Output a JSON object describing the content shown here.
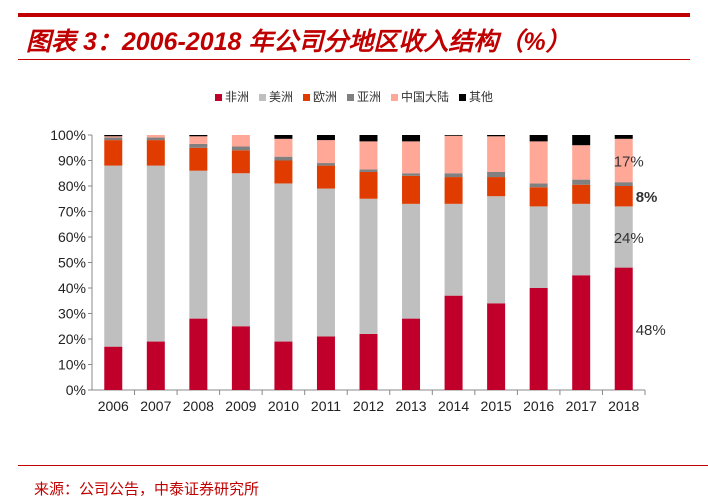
{
  "header": {
    "title": "图表 3：2006-2018 年公司分地区收入结构（%）"
  },
  "footer": {
    "source": "来源：公司公告，中泰证券研究所"
  },
  "chart_data": {
    "type": "bar",
    "stacked": true,
    "title": "",
    "xlabel": "",
    "ylabel": "",
    "ylim": [
      0,
      100
    ],
    "y_ticks": [
      "0%",
      "10%",
      "20%",
      "30%",
      "40%",
      "50%",
      "60%",
      "70%",
      "80%",
      "90%",
      "100%"
    ],
    "legend_position": "top",
    "grid": false,
    "categories": [
      "2006",
      "2007",
      "2008",
      "2009",
      "2010",
      "2011",
      "2012",
      "2013",
      "2014",
      "2015",
      "2016",
      "2017",
      "2018"
    ],
    "series": [
      {
        "name": "非洲",
        "color": "#C0002A",
        "values": [
          17,
          19,
          28,
          25,
          19,
          21,
          22,
          28,
          37,
          34,
          40,
          45,
          48
        ]
      },
      {
        "name": "美洲",
        "color": "#BFBFBF",
        "values": [
          71,
          69,
          58,
          60,
          62,
          58,
          53,
          45,
          36,
          42,
          32,
          28,
          24
        ]
      },
      {
        "name": "欧洲",
        "color": "#E03C00",
        "values": [
          10,
          10,
          9,
          9,
          9,
          9,
          10.5,
          11,
          10.5,
          7.5,
          7.5,
          7.5,
          8
        ]
      },
      {
        "name": "亚洲",
        "color": "#808080",
        "values": [
          1,
          1,
          1.5,
          1.5,
          1.5,
          1,
          1,
          1,
          1.5,
          2,
          1.5,
          2,
          1.5
        ]
      },
      {
        "name": "中国大陆",
        "color": "#FFA898",
        "values": [
          0.5,
          1,
          3,
          4.5,
          7,
          9,
          11,
          12.5,
          14.7,
          14,
          16.5,
          13.5,
          17
        ]
      },
      {
        "name": "其他",
        "color": "#000000",
        "values": [
          0.5,
          0,
          0.5,
          0,
          1.5,
          2,
          2.5,
          2.5,
          0.3,
          0.5,
          2.5,
          4,
          1.5
        ]
      }
    ],
    "annotations": [
      {
        "category": "2018",
        "series": "中国大陆",
        "text": "17%"
      },
      {
        "category": "2018",
        "series": "欧洲",
        "text": "8%"
      },
      {
        "category": "2018",
        "series": "美洲",
        "text": "24%"
      },
      {
        "category": "2018",
        "series": "非洲",
        "text": "48%"
      }
    ]
  }
}
